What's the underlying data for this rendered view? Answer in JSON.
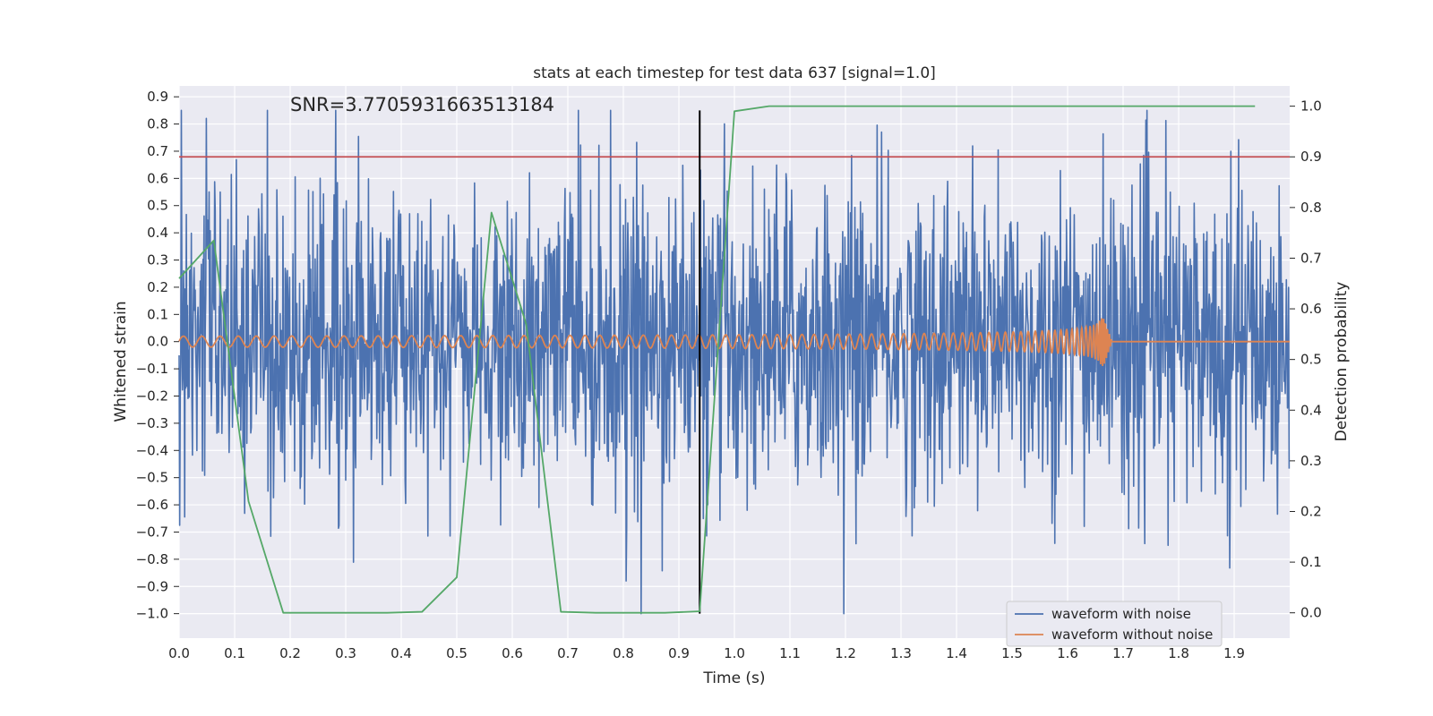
{
  "chart_data": {
    "type": "line",
    "title": "stats at each timestep for test data 637 [signal=1.0]",
    "annotation": "SNR=3.7705931663513184",
    "xlabel": "Time (s)",
    "ylabel": "Whitened strain",
    "y2label": "Detection probability",
    "xlim": [
      0.0,
      2.0
    ],
    "ylim": [
      -1.09,
      0.94
    ],
    "y2lim": [
      -0.05,
      1.04
    ],
    "x_ticks": [
      "0.0",
      "0.1",
      "0.2",
      "0.3",
      "0.4",
      "0.5",
      "0.6",
      "0.7",
      "0.8",
      "0.9",
      "1.0",
      "1.1",
      "1.2",
      "1.3",
      "1.4",
      "1.5",
      "1.6",
      "1.7",
      "1.8",
      "1.9"
    ],
    "y_ticks": [
      "0.9",
      "0.8",
      "0.7",
      "0.6",
      "0.5",
      "0.4",
      "0.3",
      "0.2",
      "0.1",
      "0.0",
      "−0.1",
      "−0.2",
      "−0.3",
      "−0.4",
      "−0.5",
      "−0.6",
      "−0.7",
      "−0.8",
      "−0.9",
      "−1.0"
    ],
    "y2_ticks": [
      "1.0",
      "0.9",
      "0.8",
      "0.7",
      "0.6",
      "0.5",
      "0.4",
      "0.3",
      "0.2",
      "0.1",
      "0.0"
    ],
    "grid": true,
    "legend_placement": "bottom-right",
    "colors": {
      "noisy": "#4c72b0",
      "clean": "#dd8452",
      "probability": "#55a868",
      "threshold": "#c44e52",
      "marker": "#000000",
      "plot_bg": "#eaeaf2",
      "grid": "#ffffff"
    },
    "series": [
      {
        "name": "waveform with noise",
        "description_axis": "left"
      },
      {
        "name": "waveform without noise",
        "description_axis": "left"
      }
    ],
    "noise_stats": {
      "samples": 2000,
      "min": -1.0,
      "max": 0.85
    },
    "clean_waveform": {
      "base_amplitude": 0.02,
      "base_freq_hz": 30,
      "peak_amplitude": 0.11,
      "merger_time": 1.665,
      "end_time": 1.68
    },
    "probability": {
      "x": [
        0.0,
        0.0625,
        0.125,
        0.1875,
        0.25,
        0.3125,
        0.375,
        0.4375,
        0.5,
        0.5625,
        0.625,
        0.6875,
        0.75,
        0.8125,
        0.875,
        0.9375,
        1.0,
        1.0625,
        1.125,
        1.1875,
        1.25,
        1.3125,
        1.375,
        1.4375,
        1.5,
        1.5625,
        1.625,
        1.6875,
        1.75,
        1.8125,
        1.875,
        1.9375
      ],
      "y": [
        0.66,
        0.735,
        0.22,
        0.0,
        0.0,
        0.0,
        0.0,
        0.002,
        0.07,
        0.79,
        0.57,
        0.002,
        0.0,
        0.0,
        0.0,
        0.003,
        0.99,
        1.0,
        1.0,
        1.0,
        1.0,
        1.0,
        1.0,
        1.0,
        1.0,
        1.0,
        1.0,
        1.0,
        1.0,
        1.0,
        1.0,
        1.0
      ]
    },
    "threshold": 0.9,
    "marker_time": 0.9375,
    "marker_range": [
      -1.0,
      0.85
    ]
  }
}
